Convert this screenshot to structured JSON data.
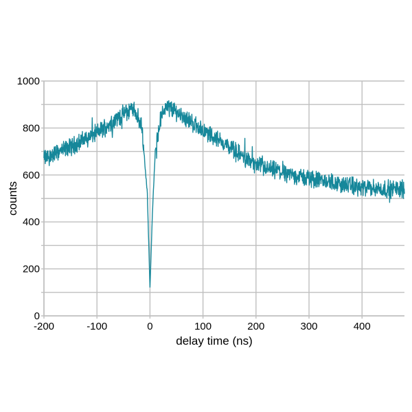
{
  "chart_data": {
    "type": "line",
    "title": "",
    "xlabel": "delay time (ns)",
    "ylabel": "counts",
    "xlim": [
      -200,
      480
    ],
    "ylim": [
      0,
      1000
    ],
    "x_ticks": [
      -200,
      -100,
      0,
      100,
      200,
      300,
      400
    ],
    "x_tick_labels": [
      "-200",
      "-100",
      "0",
      "100",
      "200",
      "300",
      "400"
    ],
    "y_ticks": [
      0,
      200,
      400,
      600,
      800,
      1000
    ],
    "y_tick_labels": [
      "0",
      "200",
      "400",
      "600",
      "800",
      "1000"
    ],
    "y_minor_gridlines": [
      100,
      300,
      500,
      700,
      900
    ],
    "grid": true,
    "legend": null,
    "line_color": "#16879a",
    "grid_color": "#bfbfbf",
    "series": [
      {
        "name": "counts",
        "description": "Noisy second-order correlation histogram: rises from ~670 at -200 ns to a shoulder of ~880 near -40 ns, dips sharply to a minimum of ~120 at 0 ns (antibunching), recovers to a bunching peak of ~900 near +30 ns, then decays toward ~540 by 480 ns. Noise amplitude ~±50 counts.",
        "keypoints_x": [
          -200,
          -150,
          -100,
          -50,
          -30,
          -15,
          -5,
          0,
          5,
          10,
          20,
          30,
          50,
          100,
          150,
          200,
          250,
          300,
          350,
          400,
          450,
          480
        ],
        "keypoints_y": [
          670,
          720,
          780,
          860,
          885,
          800,
          520,
          120,
          460,
          700,
          840,
          895,
          870,
          790,
          720,
          640,
          610,
          585,
          565,
          545,
          540,
          540
        ]
      }
    ]
  }
}
